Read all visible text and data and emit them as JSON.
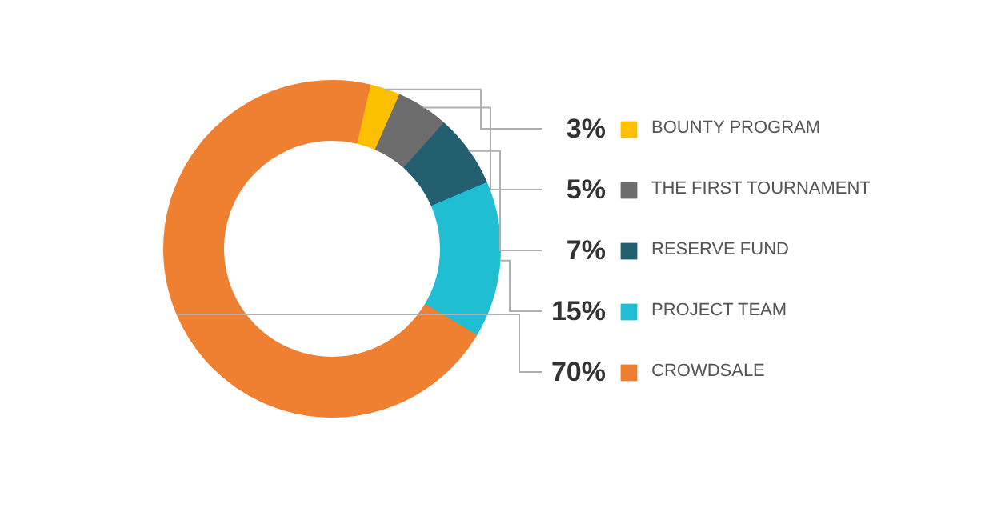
{
  "chart_data": {
    "type": "donut",
    "categories": [
      "BOUNTY PROGRAM",
      "THE FIRST TOURNAMENT",
      "RESERVE FUND",
      "PROJECT TEAM",
      "CROWDSALE"
    ],
    "values": [
      3,
      5,
      7,
      15,
      70
    ],
    "colors": [
      "#fdc000",
      "#6d6d6d",
      "#235f6f",
      "#1fbed3",
      "#ef7f31"
    ],
    "value_labels": [
      "3%",
      "5%",
      "7%",
      "15%",
      "70%"
    ],
    "legend": "right"
  }
}
